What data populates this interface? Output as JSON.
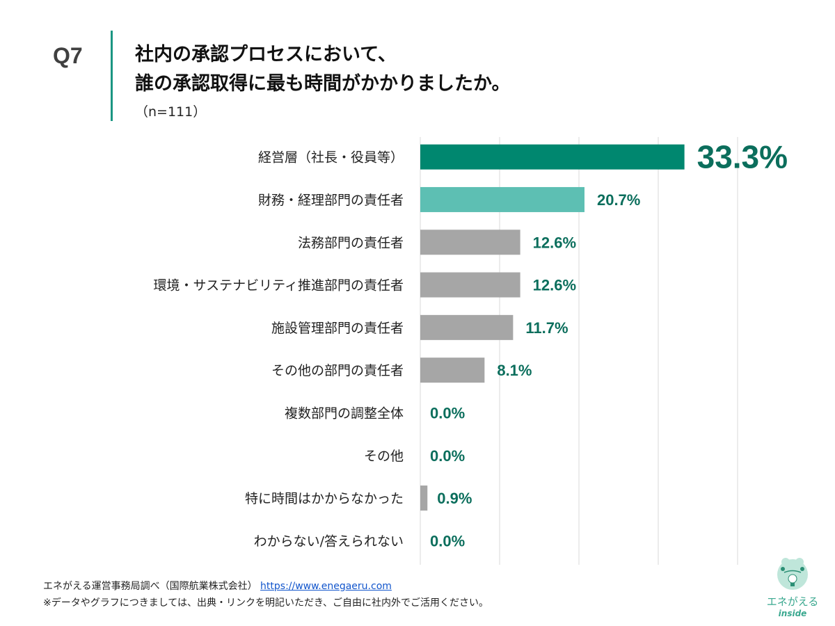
{
  "header": {
    "question_no": "Q7",
    "title_line1": "社内の承認プロセスにおいて、",
    "title_line2": "誰の承認取得に最も時間がかかりましたか。",
    "sample": "（n=111）"
  },
  "chart_data": {
    "type": "bar",
    "orientation": "horizontal",
    "categories": [
      "経営層（社長・役員等）",
      "財務・経理部門の責任者",
      "法務部門の責任者",
      "環境・サステナビリティ推進部門の責任者",
      "施設管理部門の責任者",
      "その他の部門の責任者",
      "複数部門の調整全体",
      "その他",
      "特に時間はかからなかった",
      "わからない/答えられない"
    ],
    "values": [
      33.3,
      20.7,
      12.6,
      12.6,
      11.7,
      8.1,
      0.0,
      0.0,
      0.9,
      0.0
    ],
    "labels": [
      "33.3%",
      "20.7%",
      "12.6%",
      "12.6%",
      "11.7%",
      "8.1%",
      "0.0%",
      "0.0%",
      "0.9%",
      "0.0%"
    ],
    "unit": "%",
    "xlim": [
      0,
      40
    ],
    "grid": true,
    "colors": {
      "top": "#00876f",
      "second": "#5dbfb3",
      "others": "#a6a6a6",
      "label": "#0b6e5c"
    }
  },
  "footer": {
    "source": "エネがえる運営事務局調べ（国際航業株式会社）",
    "url": "https://www.enegaeru.com",
    "note": "※データやグラフにつきましては、出典・リンクを明記いただき、ご自由に社内外でご活用ください。"
  },
  "logo": {
    "text": "エネがえる",
    "sub": "inside"
  }
}
